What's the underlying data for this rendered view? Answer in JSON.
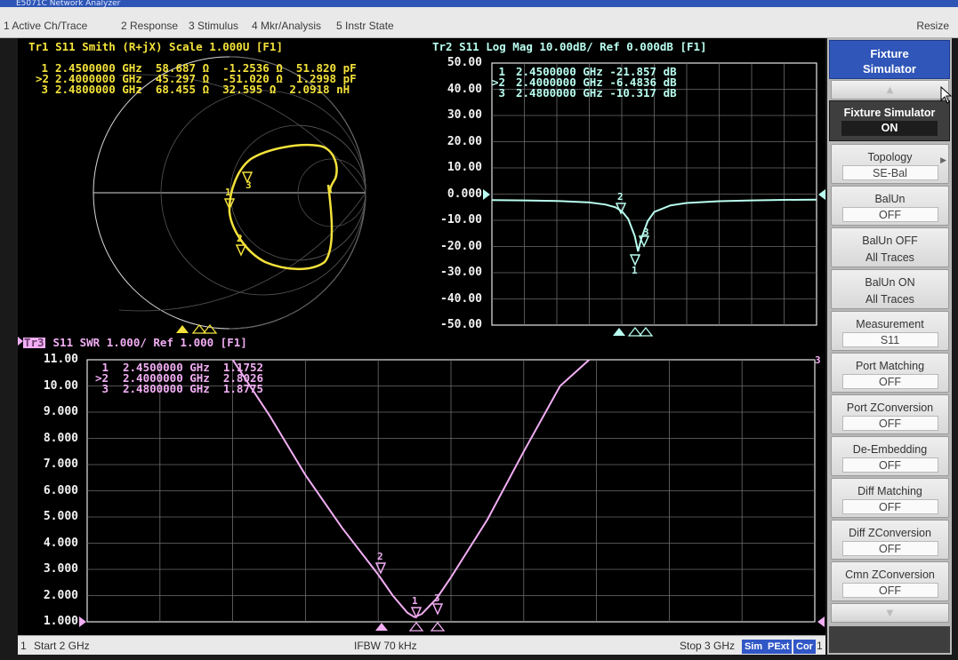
{
  "window": {
    "title": "E5071C Network Analyzer",
    "resize_label": "Resize"
  },
  "menu": [
    "1 Active Ch/Trace",
    "2 Response",
    "3 Stimulus",
    "4 Mkr/Analysis",
    "5 Instr State"
  ],
  "colors": {
    "trace1": "#f4e23a",
    "trace2": "#b9fff0",
    "trace3": "#f2aef4",
    "grid": "#6d6d6d",
    "softkey_header": "#2f56b8"
  },
  "trace1": {
    "header": "Tr1 S11 Smith (R+jX) Scale 1.000U [F1]",
    "markers": [
      {
        "id": "1",
        "text": "2.4500000 GHz  58.687 Ω  -1.2536 Ω  51.820 pF"
      },
      {
        "id": ">2",
        "text": "2.4000000 GHz  45.297 Ω  -51.020 Ω  1.2998 pF"
      },
      {
        "id": "3",
        "text": "2.4800000 GHz  68.455 Ω  32.595 Ω  2.0918 nH"
      }
    ]
  },
  "trace2": {
    "header": "Tr2 S11 Log Mag 10.00dB/ Ref 0.000dB [F1]",
    "markers": [
      {
        "id": "1",
        "text": "2.4500000 GHz -21.857 dB"
      },
      {
        "id": ">2",
        "text": "2.4000000 GHz -6.4836 dB"
      },
      {
        "id": "3",
        "text": "2.4800000 GHz -10.317 dB"
      }
    ],
    "yticks": [
      "50.00",
      "40.00",
      "30.00",
      "20.00",
      "10.00",
      "0.000",
      "-10.00",
      "-20.00",
      "-30.00",
      "-40.00",
      "-50.00"
    ]
  },
  "trace3": {
    "header_prefix": "Tr3",
    "header": " S11 SWR 1.000/ Ref 1.000 [F1]",
    "markers": [
      {
        "id": "1",
        "text": "2.4500000 GHz  1.1752"
      },
      {
        "id": ">2",
        "text": "2.4000000 GHz  2.8026"
      },
      {
        "id": "3",
        "text": "2.4800000 GHz  1.8775"
      }
    ],
    "yticks": [
      "11.00",
      "10.00",
      "9.000",
      "8.000",
      "7.000",
      "6.000",
      "5.000",
      "4.000",
      "3.000",
      "2.000",
      "1.000"
    ],
    "right_marker_label": "3"
  },
  "chart_data": [
    {
      "type": "line",
      "title": "Tr2 S11 Log Mag 10.00dB/ Ref 0.000dB [F1]",
      "ylabel": "dB",
      "xlim": [
        2.0,
        3.0
      ],
      "ylim": [
        -50,
        50
      ],
      "grid": true,
      "series": [
        {
          "x": [
            2.0,
            2.1,
            2.2,
            2.3,
            2.35,
            2.38,
            2.4,
            2.42,
            2.44,
            2.45,
            2.46,
            2.48,
            2.5,
            2.55,
            2.6,
            2.7,
            2.8,
            2.9,
            3.0
          ],
          "values": [
            -2.3,
            -2.4,
            -2.6,
            -3.2,
            -4.0,
            -5.0,
            -6.48,
            -9.5,
            -16.0,
            -21.86,
            -17.0,
            -10.32,
            -6.8,
            -4.3,
            -3.4,
            -2.7,
            -2.4,
            -2.2,
            -2.1
          ]
        }
      ],
      "markers": [
        {
          "label": "1",
          "x": 2.45,
          "y": -21.857
        },
        {
          "label": "2",
          "x": 2.4,
          "y": -6.4836
        },
        {
          "label": "3",
          "x": 2.48,
          "y": -10.317
        }
      ]
    },
    {
      "type": "line",
      "title": "Tr3 S11 SWR 1.000/ Ref 1.000 [F1]",
      "ylabel": "SWR",
      "xlim": [
        2.0,
        3.0
      ],
      "ylim": [
        1,
        11
      ],
      "grid": true,
      "series": [
        {
          "x": [
            2.2,
            2.25,
            2.3,
            2.35,
            2.4,
            2.42,
            2.44,
            2.45,
            2.46,
            2.48,
            2.5,
            2.55,
            2.6,
            2.65,
            2.69
          ],
          "values": [
            11.0,
            8.9,
            6.6,
            4.6,
            2.8,
            2.0,
            1.35,
            1.1752,
            1.3,
            1.8775,
            2.7,
            4.9,
            7.5,
            10.0,
            11.0
          ]
        }
      ],
      "markers": [
        {
          "label": "1",
          "x": 2.45,
          "y": 1.1752
        },
        {
          "label": "2",
          "x": 2.4,
          "y": 2.8026
        },
        {
          "label": "3",
          "x": 2.48,
          "y": 1.8775
        }
      ]
    }
  ],
  "status": {
    "channel": "1",
    "start": "Start 2 GHz",
    "ifbw": "IFBW 70 kHz",
    "stop": "Stop 3 GHz",
    "badges": [
      "Sim",
      "PExt",
      "Cor"
    ],
    "end": "1"
  },
  "softkeys": {
    "header": [
      "Fixture",
      "Simulator"
    ],
    "scroll_up": "▲",
    "active": {
      "label": "Fixture Simulator",
      "value": "ON"
    },
    "items": [
      {
        "label": "Topology",
        "value": "SE-Bal",
        "arrow": "▶"
      },
      {
        "label": "BalUn",
        "value": "OFF"
      },
      {
        "lines": [
          "BalUn OFF",
          "All Traces"
        ]
      },
      {
        "lines": [
          "BalUn ON",
          "All Traces"
        ]
      },
      {
        "label": "Measurement",
        "value": "S11"
      },
      {
        "label": "Port Matching",
        "value": "OFF"
      },
      {
        "label": "Port ZConversion",
        "value": "OFF"
      },
      {
        "label": "De-Embedding",
        "value": "OFF"
      },
      {
        "label": "Diff Matching",
        "value": "OFF"
      },
      {
        "label": "Diff ZConversion",
        "value": "OFF"
      },
      {
        "label": "Cmn ZConversion",
        "value": "OFF"
      }
    ],
    "scroll_down": "▼"
  }
}
